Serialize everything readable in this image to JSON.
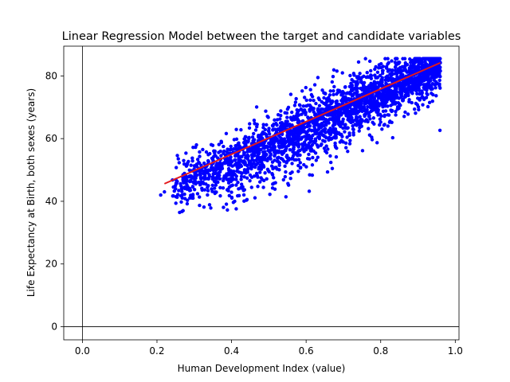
{
  "chart_data": {
    "type": "scatter",
    "title": "Linear Regression Model between the target and candidate variables",
    "xlabel": "Human Development Index (value)",
    "ylabel": "Life Expectancy at Birth, both sexes (years)",
    "xlim": [
      -0.05,
      1.01
    ],
    "ylim": [
      -4.2,
      89.5
    ],
    "x_ticks": [
      0.0,
      0.2,
      0.4,
      0.6,
      0.8,
      1.0
    ],
    "x_tick_labels": [
      "0.0",
      "0.2",
      "0.4",
      "0.6",
      "0.8",
      "1.0"
    ],
    "y_ticks": [
      0,
      20,
      40,
      60,
      80
    ],
    "y_tick_labels": [
      "0",
      "20",
      "40",
      "60",
      "80"
    ],
    "grid": false,
    "reference_lines": {
      "x": 0,
      "y": 0,
      "color": "#000000"
    },
    "series": [
      {
        "kind": "scatter",
        "color": "#0000ff",
        "x_range": [
          0.21,
          0.96
        ],
        "y_trend": [
          42.0,
          83.5
        ],
        "point_count": 2600,
        "spread": 4.5,
        "outliers": [
          [
            0.27,
            37.0
          ],
          [
            0.21,
            42.0
          ],
          [
            0.22,
            43.0
          ]
        ]
      },
      {
        "kind": "fit-line",
        "color": "#e31a1c",
        "x": [
          0.22,
          0.96
        ],
        "y": [
          45.6,
          84.2
        ]
      }
    ]
  }
}
